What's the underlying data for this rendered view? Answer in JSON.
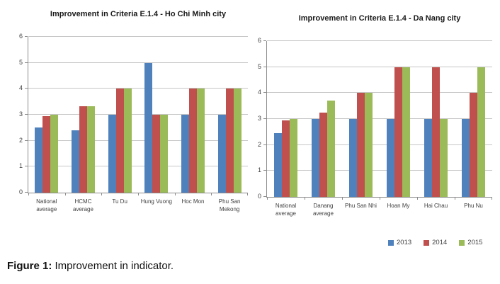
{
  "figure": {
    "caption_label": "Figure 1:",
    "caption_text": " Improvement in indicator."
  },
  "legend": {
    "items": [
      {
        "label": "2013",
        "color": "#4F81BD"
      },
      {
        "label": "2014",
        "color": "#C0504D"
      },
      {
        "label": "2015",
        "color": "#9BBB59"
      }
    ]
  },
  "colors": {
    "series_2013": "#4F81BD",
    "series_2014": "#C0504D",
    "series_2015": "#9BBB59",
    "gridline": "#c6c6c6",
    "axis": "#8c8c8c"
  },
  "chart_data": [
    {
      "type": "bar",
      "title": "Improvement in Criteria E.1.4 - Ho Chi Minh city",
      "categories": [
        "National average",
        "HCMC average",
        "Tu Du",
        "Hung Vuong",
        "Hoc Mon",
        "Phu San Mekong"
      ],
      "series": [
        {
          "name": "2013",
          "color": "#4F81BD",
          "values": [
            2.5,
            2.4,
            3,
            5,
            3,
            3
          ]
        },
        {
          "name": "2014",
          "color": "#C0504D",
          "values": [
            2.95,
            3.33,
            4,
            3,
            4,
            4
          ]
        },
        {
          "name": "2015",
          "color": "#9BBB59",
          "values": [
            3,
            3.33,
            4,
            3,
            4,
            4
          ]
        }
      ],
      "xlabel": "",
      "ylabel": "",
      "ylim": [
        0,
        6
      ],
      "yticks": [
        0,
        1,
        2,
        3,
        4,
        5,
        6
      ],
      "grid": true,
      "legend_position": "shared-bottom-right"
    },
    {
      "type": "bar",
      "title": "Improvement in Criteria E.1.4 - Da Nang city",
      "categories": [
        "National average",
        "Danang average",
        "Phu San Nhi",
        "Hoan My",
        "Hai Chau",
        "Phu Nu"
      ],
      "series": [
        {
          "name": "2013",
          "color": "#4F81BD",
          "values": [
            2.45,
            3,
            3,
            3,
            3,
            3
          ]
        },
        {
          "name": "2014",
          "color": "#C0504D",
          "values": [
            2.95,
            3.25,
            4,
            5,
            5,
            4
          ]
        },
        {
          "name": "2015",
          "color": "#9BBB59",
          "values": [
            3,
            3.7,
            4,
            5,
            3,
            5
          ]
        }
      ],
      "xlabel": "",
      "ylabel": "",
      "ylim": [
        0,
        6
      ],
      "yticks": [
        0,
        1,
        2,
        3,
        4,
        5,
        6
      ],
      "grid": true,
      "legend_position": "shared-bottom-right"
    }
  ]
}
